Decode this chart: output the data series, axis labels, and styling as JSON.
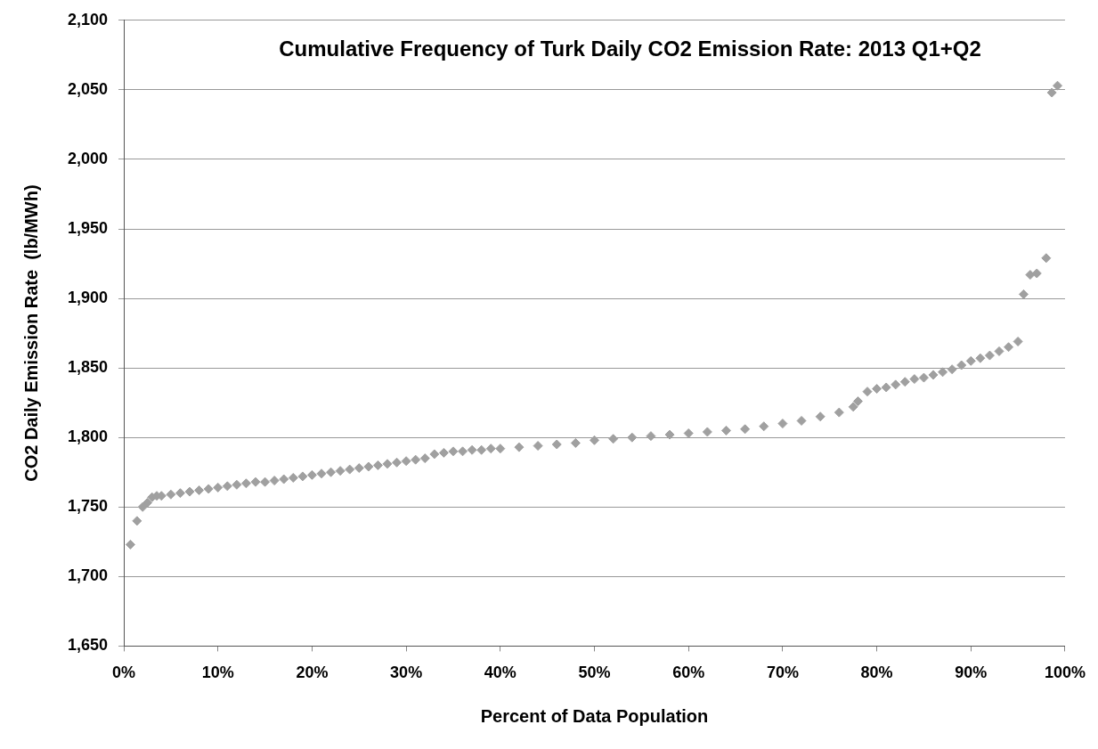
{
  "chart_data": {
    "type": "scatter",
    "title": "Cumulative Frequency of Turk Daily CO2 Emission Rate: 2013 Q1+Q2",
    "xlabel": "Percent of Data Population",
    "ylabel": "CO2 Daily Emission Rate  (lb/MWh)",
    "x": [
      0.7,
      1.4,
      2,
      2.5,
      3,
      3.5,
      4,
      5,
      6,
      7,
      8,
      9,
      10,
      11,
      12,
      13,
      14,
      15,
      16,
      17,
      18,
      19,
      20,
      21,
      22,
      23,
      24,
      25,
      26,
      27,
      28,
      29,
      30,
      31,
      32,
      33,
      34,
      35,
      36,
      37,
      38,
      39,
      40,
      42,
      44,
      46,
      48,
      50,
      52,
      54,
      56,
      58,
      60,
      62,
      64,
      66,
      68,
      70,
      72,
      74,
      76,
      77.5,
      78,
      79,
      80,
      81,
      82,
      83,
      84,
      85,
      86,
      87,
      88,
      89,
      90,
      91,
      92,
      93,
      94,
      95,
      95.6,
      96.3,
      97,
      98,
      98.6,
      99.2
    ],
    "series": [
      {
        "color": "#a0a0a0",
        "values": [
          1723,
          1740,
          1750,
          1753,
          1757,
          1758,
          1758,
          1759,
          1760,
          1761,
          1762,
          1763,
          1764,
          1765,
          1766,
          1767,
          1768,
          1768,
          1769,
          1770,
          1771,
          1772,
          1773,
          1774,
          1775,
          1776,
          1777,
          1778,
          1779,
          1780,
          1781,
          1782,
          1783,
          1784,
          1785,
          1788,
          1789,
          1790,
          1790,
          1791,
          1791,
          1792,
          1792,
          1793,
          1794,
          1795,
          1796,
          1798,
          1799,
          1800,
          1801,
          1802,
          1803,
          1804,
          1805,
          1806,
          1808,
          1810,
          1812,
          1815,
          1818,
          1822,
          1826,
          1833,
          1835,
          1836,
          1838,
          1840,
          1842,
          1843,
          1845,
          1847,
          1849,
          1852,
          1855,
          1857,
          1859,
          1862,
          1865,
          1869,
          1903,
          1917,
          1918,
          1929,
          2048,
          2053
        ]
      }
    ],
    "xlim": [
      0,
      100
    ],
    "xticks": [
      {
        "value": 0,
        "label": "0%"
      },
      {
        "value": 10,
        "label": "10%"
      },
      {
        "value": 20,
        "label": "20%"
      },
      {
        "value": 30,
        "label": "30%"
      },
      {
        "value": 40,
        "label": "40%"
      },
      {
        "value": 50,
        "label": "50%"
      },
      {
        "value": 60,
        "label": "60%"
      },
      {
        "value": 70,
        "label": "70%"
      },
      {
        "value": 80,
        "label": "80%"
      },
      {
        "value": 90,
        "label": "90%"
      },
      {
        "value": 100,
        "label": "100%"
      }
    ],
    "ylim": [
      1650,
      2100
    ],
    "yticks": [
      {
        "value": 1650,
        "label": "1,650"
      },
      {
        "value": 1700,
        "label": "1,700"
      },
      {
        "value": 1750,
        "label": "1,750"
      },
      {
        "value": 1800,
        "label": "1,800"
      },
      {
        "value": 1850,
        "label": "1,850"
      },
      {
        "value": 1900,
        "label": "1,900"
      },
      {
        "value": 1950,
        "label": "1,950"
      },
      {
        "value": 2000,
        "label": "2,000"
      },
      {
        "value": 2050,
        "label": "2,050"
      },
      {
        "value": 2100,
        "label": "2,100"
      }
    ],
    "grid": "y",
    "marker": "diamond"
  }
}
